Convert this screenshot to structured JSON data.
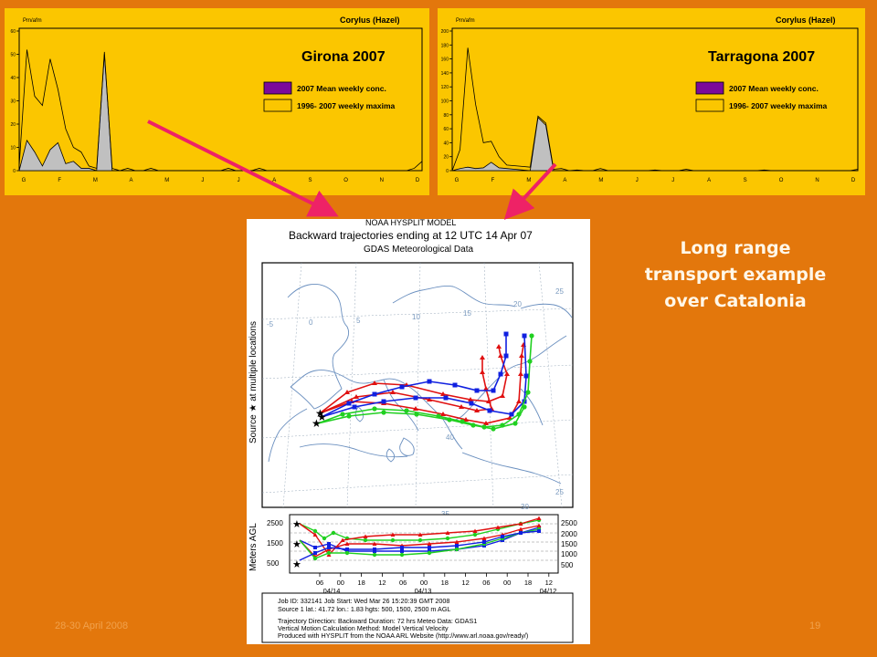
{
  "colors": {
    "background": "#e3770c",
    "panel": "#fbc600",
    "mean_fill": "#c0c0c0",
    "legend_mean": "#7b0a9c",
    "arrow": "#ee2266",
    "traj_red": "#e01010",
    "traj_blue": "#1020e0",
    "traj_green": "#20d020"
  },
  "chart_data": [
    {
      "type": "area",
      "title": "Girona 2007",
      "corner_label": "Corylus (Hazel)",
      "unit_label": "Pm/afm",
      "ylim": [
        0,
        60
      ],
      "yticks": [
        "0",
        "10",
        "20",
        "30",
        "40",
        "50",
        "60"
      ],
      "month_ticks": [
        "G",
        "F",
        "M",
        "A",
        "M",
        "J",
        "J",
        "A",
        "S",
        "O",
        "N",
        "D"
      ],
      "series": [
        {
          "name": "2007 Mean weekly conc.",
          "values": [
            0,
            13,
            8,
            2,
            9,
            12,
            3,
            4,
            1,
            1,
            0,
            51,
            0,
            0,
            0,
            0,
            0,
            0,
            0,
            0,
            0,
            0,
            0,
            0,
            0,
            0,
            0,
            0,
            0,
            0,
            0,
            0,
            0,
            0,
            0,
            0,
            0,
            0,
            0,
            0,
            0,
            0,
            0,
            0,
            0,
            0,
            0,
            0,
            0,
            0,
            0,
            0,
            0
          ]
        },
        {
          "name": "1996- 2007 weekly maxima",
          "values": [
            2,
            52,
            32,
            28,
            48,
            35,
            18,
            10,
            8,
            2,
            1,
            50,
            1,
            0,
            1,
            0,
            0,
            1,
            0,
            0,
            0,
            0,
            0,
            0,
            0,
            0,
            0,
            1,
            0,
            0,
            0,
            1,
            0,
            0,
            0,
            0,
            0,
            0,
            0,
            0,
            0,
            0,
            0,
            0,
            0,
            0,
            0,
            0,
            0,
            0,
            0,
            1,
            4
          ]
        }
      ]
    },
    {
      "type": "area",
      "title": "Tarragona 2007",
      "corner_label": "Corylus (Hazel)",
      "unit_label": "Pm/afm",
      "ylim": [
        0,
        200
      ],
      "yticks": [
        "0",
        "20",
        "40",
        "60",
        "80",
        "100",
        "120",
        "140",
        "160",
        "180",
        "200"
      ],
      "month_ticks": [
        "G",
        "F",
        "M",
        "A",
        "M",
        "J",
        "J",
        "A",
        "S",
        "O",
        "N",
        "D"
      ],
      "series": [
        {
          "name": "2007 Mean weekly conc.",
          "values": [
            0,
            3,
            5,
            3,
            4,
            12,
            4,
            3,
            2,
            1,
            0,
            76,
            65,
            0,
            0,
            0,
            0,
            0,
            0,
            0,
            0,
            0,
            0,
            0,
            0,
            0,
            0,
            0,
            0,
            0,
            0,
            0,
            0,
            0,
            0,
            0,
            0,
            0,
            0,
            0,
            0,
            0,
            0,
            0,
            0,
            0,
            0,
            0,
            0,
            0,
            0,
            0,
            0
          ]
        },
        {
          "name": "1996- 2007 weekly maxima",
          "values": [
            0,
            30,
            176,
            95,
            40,
            42,
            20,
            8,
            7,
            6,
            5,
            78,
            68,
            2,
            3,
            0,
            1,
            0,
            0,
            3,
            0,
            0,
            0,
            0,
            0,
            0,
            1,
            0,
            0,
            0,
            2,
            0,
            0,
            0,
            0,
            0,
            0,
            0,
            0,
            0,
            1,
            0,
            0,
            0,
            0,
            0,
            0,
            0,
            0,
            0,
            0,
            0,
            2
          ]
        }
      ]
    }
  ],
  "hysplit": {
    "model": "NOAA HYSPLIT MODEL",
    "title": "Backward trajectories ending at 12 UTC 14 Apr 07",
    "subtitle": "GDAS Meteorological Data",
    "side_label": "Source ★ at multiple locations",
    "y_axis_label": "Meters AGL",
    "height_labels_left": [
      "2500",
      "1500",
      "500"
    ],
    "height_labels_right": [
      "2500",
      "2000",
      "1500",
      "1000",
      "500"
    ],
    "time_ticks": [
      "06",
      "00",
      "18",
      "12",
      "06",
      "00",
      "18",
      "12",
      "06",
      "00",
      "18",
      "12"
    ],
    "date_ticks": [
      "04/14",
      "04/13",
      "04/12"
    ],
    "map_lat_labels": [
      "25",
      "20",
      "15",
      "10",
      "5",
      "0",
      "-5",
      "40",
      "35",
      "30",
      "25"
    ],
    "info": [
      "Job ID: 332141      Job Start: Wed Mar 26 15:20:39 GMT 2008",
      "Source 1 lat.: 41.72   lon.: 1.83  hgts: 500, 1500, 2500 m AGL",
      "Trajectory Direction: Backward     Duration: 72 hrs     Meteo Data: GDAS1",
      "Vertical Motion Calculation Method: Model Vertical Velocity",
      "Produced with HYSPLIT from the NOAA ARL Website (http://www.arl.noaa.gov/ready/)"
    ]
  },
  "caption": [
    "Long range",
    "transport example",
    "over Catalonia"
  ],
  "footer": {
    "date": "28-30 April 2008",
    "page": "19"
  }
}
